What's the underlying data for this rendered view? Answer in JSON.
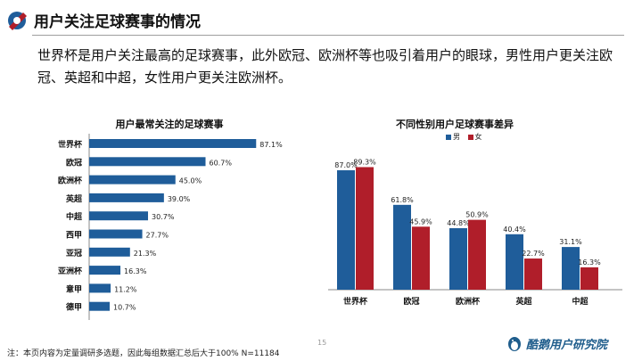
{
  "header": {
    "title": "用户关注足球赛事的情况",
    "summary": "世界杯是用户关注最高的足球赛事，此外欧冠、欧洲杯等也吸引着用户的眼球，男性用户更关注欧冠、英超和中超，女性用户更关注欧洲杯。"
  },
  "footer": {
    "note": "注：本页内容为定量调研多选题，因此每组数据汇总后大于100%  N=11184",
    "page_number": "15",
    "brand": "酷鹅用户研究院"
  },
  "colors": {
    "blue": "#1f5d9a",
    "red": "#b01e2a"
  },
  "chart_data": [
    {
      "type": "bar",
      "orientation": "horizontal",
      "title": "用户最常关注的足球赛事",
      "categories": [
        "世界杯",
        "欧冠",
        "欧洲杯",
        "英超",
        "中超",
        "西甲",
        "亚冠",
        "亚洲杯",
        "意甲",
        "德甲"
      ],
      "values": [
        87.1,
        60.7,
        45.0,
        39.0,
        30.7,
        27.7,
        21.3,
        16.3,
        11.2,
        10.7
      ],
      "value_labels": [
        "87.1%",
        "60.7%",
        "45.0%",
        "39.0%",
        "30.7%",
        "27.7%",
        "21.3%",
        "16.3%",
        "11.2%",
        "10.7%"
      ],
      "xlim": [
        0,
        100
      ],
      "grid": false,
      "color": "#1f5d9a"
    },
    {
      "type": "bar",
      "orientation": "vertical",
      "title": "不同性别用户足球赛事差异",
      "categories": [
        "世界杯",
        "欧冠",
        "欧洲杯",
        "英超",
        "中超"
      ],
      "series": [
        {
          "name": "男",
          "values": [
            87.0,
            61.8,
            44.8,
            40.4,
            31.1
          ],
          "labels": [
            "87.0%",
            "61.8%",
            "44.8%",
            "40.4%",
            "31.1%"
          ],
          "color": "#1f5d9a"
        },
        {
          "name": "女",
          "values": [
            89.3,
            45.9,
            50.9,
            22.7,
            16.3
          ],
          "labels": [
            "89.3%",
            "45.9%",
            "50.9%",
            "22.7%",
            "16.3%"
          ],
          "color": "#b01e2a"
        }
      ],
      "ylim": [
        0,
        100
      ],
      "legend": "top-right",
      "grid": false
    }
  ]
}
